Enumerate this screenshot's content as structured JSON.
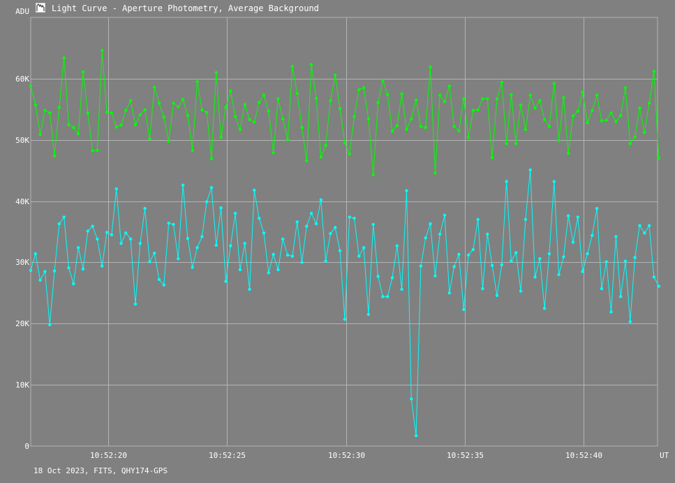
{
  "window": {
    "title": "Light Curve - Aperture Photometry, Average Background",
    "icon": "light-curve-app-icon"
  },
  "footer": {
    "caption": "18 Oct 2023, FITS, QHY174-GPS"
  },
  "colors": {
    "background": "#808080",
    "grid": "#b4b4b4",
    "text": "#ffffff",
    "series_green": "#00ff00",
    "series_cyan": "#00ffff"
  },
  "chart_data": {
    "type": "line",
    "title": "",
    "ylabel": "ADU",
    "xlabel": "UT",
    "ylim": [
      0,
      70000
    ],
    "xlim_labels": [
      "10:52:16.75",
      "10:52:43.10"
    ],
    "x_ticks": [
      "10:52:20",
      "10:52:25",
      "10:52:30",
      "10:52:35",
      "10:52:40"
    ],
    "y_ticks": [
      "0",
      "10K",
      "20K",
      "30K",
      "40K",
      "50K",
      "60K"
    ],
    "y_tick_values": [
      0,
      10000,
      20000,
      30000,
      40000,
      50000,
      60000
    ],
    "grid": true,
    "x_start": "10:52:16.75",
    "x_step_seconds": 0.2,
    "series": [
      {
        "color": "#00ff00",
        "values": [
          58800,
          55700,
          50900,
          54800,
          54400,
          47400,
          55300,
          63400,
          52500,
          52000,
          51000,
          61100,
          54400,
          48200,
          48300,
          64600,
          54500,
          54400,
          52100,
          52400,
          54800,
          56400,
          52500,
          54100,
          54900,
          50200,
          58600,
          56000,
          53700,
          49800,
          56000,
          55400,
          56600,
          54000,
          48300,
          59500,
          54900,
          54500,
          46900,
          61000,
          50400,
          55300,
          58000,
          53800,
          51700,
          55800,
          53300,
          52900,
          56100,
          57300,
          54700,
          47900,
          56700,
          53400,
          50000,
          62000,
          57600,
          52000,
          46600,
          62300,
          56800,
          47200,
          49100,
          56400,
          60600,
          55100,
          49500,
          47700,
          53800,
          58200,
          58500,
          53400,
          44300,
          56100,
          59700,
          57400,
          51400,
          52300,
          57500,
          51700,
          53400,
          56500,
          52200,
          52000,
          61900,
          44600,
          57300,
          56200,
          58800,
          52200,
          51500,
          56700,
          50400,
          54800,
          54900,
          56700,
          56700,
          47100,
          56700,
          59400,
          49400,
          57400,
          49400,
          55700,
          51700,
          57300,
          55200,
          56400,
          53300,
          52200,
          59200,
          49900,
          56900,
          47800,
          53900,
          54700,
          57800,
          52800,
          54800,
          57300,
          53100,
          53200,
          54400,
          53000,
          54000,
          58500,
          49400,
          50500,
          55200,
          51200,
          56000,
          61200,
          47000
        ]
      },
      {
        "color": "#00ffff",
        "values": [
          28700,
          31400,
          27100,
          28500,
          19800,
          28600,
          36300,
          37400,
          29100,
          26500,
          32400,
          28900,
          35100,
          35900,
          33800,
          29400,
          34900,
          34500,
          42000,
          33100,
          34800,
          33800,
          23200,
          33100,
          38800,
          30100,
          31500,
          27200,
          26300,
          36400,
          36200,
          30600,
          42600,
          33900,
          29200,
          32400,
          34200,
          39900,
          42200,
          32800,
          38900,
          26900,
          32700,
          38000,
          28800,
          33100,
          25600,
          41800,
          37200,
          34800,
          28300,
          31300,
          28800,
          33800,
          31200,
          31000,
          36600,
          30000,
          35900,
          38000,
          36300,
          40200,
          30200,
          34700,
          35700,
          31900,
          20700,
          37400,
          37200,
          31000,
          32400,
          21500,
          36200,
          27700,
          24400,
          24400,
          27500,
          32700,
          25600,
          41700,
          7700,
          1700,
          29400,
          34000,
          36300,
          27800,
          34600,
          37700,
          25000,
          29300,
          31300,
          22300,
          31200,
          32100,
          37000,
          25700,
          34600,
          29500,
          24600,
          29600,
          43200,
          30200,
          31600,
          25300,
          37000,
          45100,
          27600,
          30600,
          22500,
          31400,
          43200,
          28000,
          30900,
          37600,
          33300,
          37400,
          28500,
          31400,
          34400,
          38800,
          25700,
          30100,
          21900,
          34200,
          24400,
          30200,
          20300,
          30800,
          36000,
          34800,
          36000,
          27600,
          26100
        ]
      }
    ]
  }
}
